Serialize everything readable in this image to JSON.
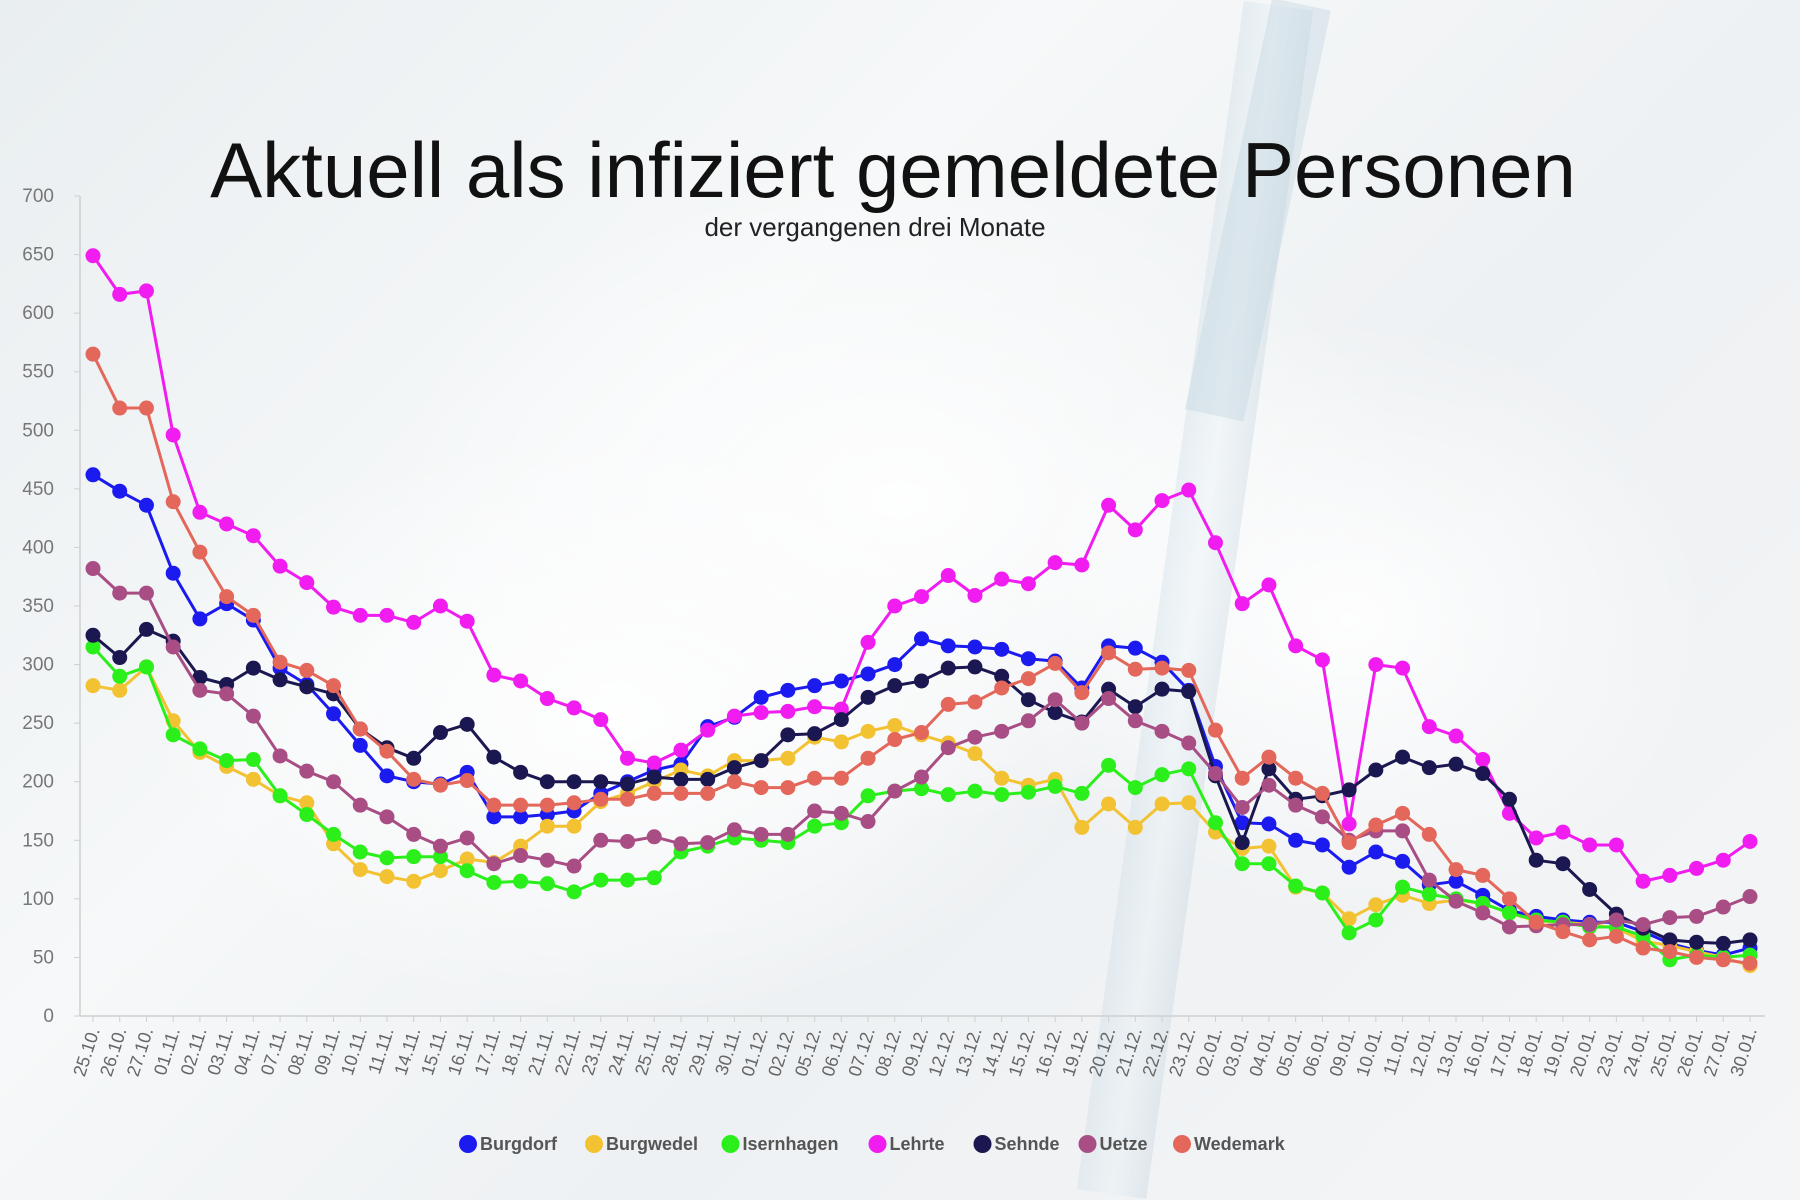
{
  "chart_data": {
    "type": "line",
    "title": "Aktuell als infiziert gemeldete Personen",
    "subtitle": "der vergangenen drei Monate",
    "ylim": [
      0,
      700
    ],
    "yticks": [
      0,
      50,
      100,
      150,
      200,
      250,
      300,
      350,
      400,
      450,
      500,
      550,
      600,
      650,
      700
    ],
    "legend_position": "bottom",
    "grid": false,
    "x": [
      "25.10.",
      "26.10.",
      "27.10.",
      "01.11.",
      "02.11.",
      "03.11.",
      "04.11.",
      "07.11.",
      "08.11.",
      "09.11.",
      "10.11.",
      "11.11.",
      "14.11.",
      "15.11.",
      "16.11.",
      "17.11.",
      "18.11.",
      "21.11.",
      "22.11.",
      "23.11.",
      "24.11.",
      "25.11.",
      "28.11.",
      "29.11.",
      "30.11.",
      "01.12.",
      "02.12.",
      "05.12.",
      "06.12.",
      "07.12.",
      "08.12.",
      "09.12.",
      "12.12.",
      "13.12.",
      "14.12.",
      "15.12.",
      "16.12.",
      "19.12.",
      "20.12.",
      "21.12.",
      "22.12.",
      "23.12.",
      "02.01.",
      "03.01.",
      "04.01.",
      "05.01.",
      "06.01.",
      "09.01.",
      "10.01.",
      "11.01.",
      "12.01.",
      "13.01.",
      "16.01.",
      "17.01.",
      "18.01.",
      "19.01.",
      "20.01.",
      "23.01.",
      "24.01.",
      "25.01.",
      "26.01.",
      "27.01.",
      "30.01."
    ],
    "series": [
      {
        "name": "Burgdorf",
        "color": "#1b1bef",
        "values": [
          462,
          448,
          436,
          378,
          339,
          352,
          338,
          297,
          283,
          258,
          231,
          205,
          200,
          198,
          208,
          170,
          170,
          172,
          175,
          190,
          200,
          210,
          215,
          247,
          255,
          272,
          278,
          282,
          286,
          292,
          300,
          322,
          316,
          315,
          313,
          305,
          303,
          280,
          316,
          314,
          302,
          278,
          213,
          165,
          164,
          150,
          146,
          127,
          140,
          132,
          112,
          115,
          103,
          90,
          85,
          82,
          80,
          80,
          72,
          62,
          56,
          52,
          58
        ]
      },
      {
        "name": "Burgwedel",
        "color": "#f2c233",
        "values": [
          282,
          278,
          298,
          252,
          225,
          213,
          202,
          188,
          182,
          147,
          125,
          119,
          115,
          124,
          134,
          131,
          145,
          162,
          162,
          183,
          190,
          200,
          210,
          205,
          218,
          218,
          220,
          238,
          234,
          243,
          248,
          240,
          233,
          224,
          203,
          197,
          202,
          161,
          181,
          161,
          181,
          182,
          157,
          143,
          145,
          110,
          105,
          83,
          95,
          103,
          96,
          99,
          96,
          88,
          81,
          80,
          78,
          75,
          64,
          60,
          55,
          50,
          43
        ]
      },
      {
        "name": "Isernhagen",
        "color": "#2bef1b",
        "values": [
          315,
          290,
          298,
          240,
          228,
          218,
          219,
          188,
          172,
          155,
          140,
          135,
          136,
          136,
          124,
          114,
          115,
          113,
          106,
          116,
          116,
          118,
          140,
          145,
          152,
          150,
          148,
          162,
          165,
          188,
          192,
          194,
          189,
          192,
          189,
          191,
          196,
          190,
          214,
          195,
          206,
          211,
          165,
          130,
          130,
          111,
          105,
          71,
          82,
          110,
          104,
          100,
          96,
          88,
          82,
          80,
          76,
          76,
          68,
          48,
          52,
          50,
          52
        ]
      },
      {
        "name": "Lehrte",
        "color": "#f01cf0",
        "values": [
          649,
          616,
          619,
          496,
          430,
          420,
          410,
          384,
          370,
          349,
          342,
          342,
          336,
          350,
          337,
          291,
          286,
          271,
          263,
          253,
          220,
          216,
          227,
          244,
          256,
          259,
          260,
          264,
          262,
          319,
          350,
          358,
          376,
          359,
          373,
          369,
          387,
          385,
          436,
          415,
          440,
          449,
          404,
          352,
          368,
          316,
          304,
          164,
          300,
          297,
          247,
          239,
          219,
          173,
          152,
          157,
          146,
          146,
          115,
          120,
          126,
          133,
          149
        ]
      },
      {
        "name": "Sehnde",
        "color": "#1b1750",
        "values": [
          325,
          306,
          330,
          320,
          289,
          283,
          297,
          287,
          281,
          275,
          245,
          229,
          220,
          242,
          249,
          221,
          208,
          200,
          200,
          200,
          198,
          204,
          202,
          202,
          212,
          218,
          240,
          241,
          253,
          272,
          282,
          286,
          297,
          298,
          290,
          270,
          259,
          251,
          279,
          264,
          279,
          277,
          205,
          148,
          211,
          185,
          188,
          193,
          210,
          221,
          212,
          215,
          207,
          185,
          133,
          130,
          108,
          87,
          75,
          65,
          63,
          62,
          65
        ]
      },
      {
        "name": "Uetze",
        "color": "#a84e85",
        "values": [
          382,
          361,
          361,
          315,
          278,
          275,
          256,
          222,
          209,
          200,
          180,
          170,
          155,
          145,
          152,
          130,
          137,
          133,
          128,
          150,
          149,
          153,
          147,
          148,
          159,
          155,
          155,
          175,
          173,
          166,
          192,
          204,
          229,
          238,
          243,
          252,
          270,
          250,
          271,
          252,
          243,
          233,
          207,
          178,
          197,
          180,
          170,
          150,
          158,
          158,
          116,
          98,
          88,
          76,
          77,
          78,
          78,
          82,
          78,
          84,
          85,
          93,
          102
        ]
      },
      {
        "name": "Wedemark",
        "color": "#e4675b",
        "values": [
          565,
          519,
          519,
          439,
          396,
          358,
          342,
          302,
          295,
          282,
          245,
          226,
          202,
          197,
          201,
          180,
          180,
          180,
          182,
          185,
          185,
          190,
          190,
          190,
          200,
          195,
          195,
          203,
          203,
          220,
          236,
          242,
          266,
          268,
          280,
          288,
          301,
          276,
          310,
          296,
          297,
          295,
          244,
          203,
          221,
          203,
          190,
          148,
          163,
          173,
          155,
          125,
          120,
          100,
          80,
          72,
          65,
          68,
          58,
          55,
          50,
          48,
          45
        ]
      }
    ]
  }
}
